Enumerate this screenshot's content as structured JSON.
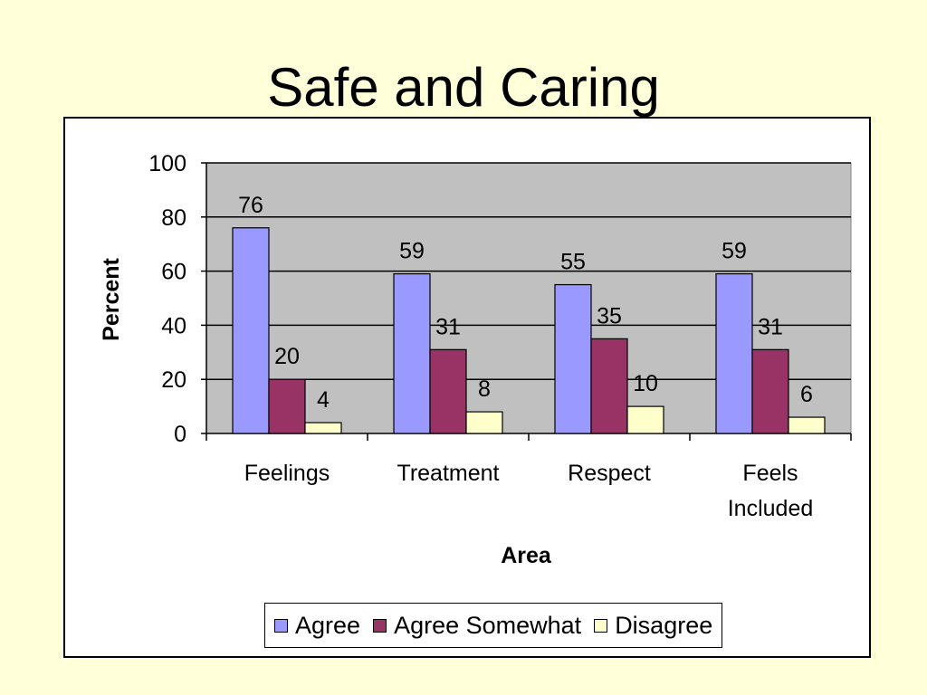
{
  "slide": {
    "title": "Safe and Caring"
  },
  "colors": {
    "background": "#ffffd9",
    "plot_area": "#c0c0c0",
    "series": [
      "#9999ff",
      "#993366",
      "#ffffcc"
    ]
  },
  "chart_data": {
    "type": "bar",
    "title": "",
    "xlabel": "Area",
    "ylabel": "Percent",
    "ylim": [
      0,
      100
    ],
    "yticks": [
      "0",
      "20",
      "40",
      "60",
      "80",
      "100"
    ],
    "categories": [
      "Feelings",
      "Treatment",
      "Respect",
      "Feels Included"
    ],
    "series": [
      {
        "name": "Agree",
        "values": [
          76,
          59,
          55,
          59
        ]
      },
      {
        "name": "Agree Somewhat",
        "values": [
          20,
          31,
          35,
          31
        ]
      },
      {
        "name": "Disagree",
        "values": [
          4,
          8,
          10,
          6
        ]
      }
    ],
    "grid": true,
    "legend": "bottom"
  }
}
